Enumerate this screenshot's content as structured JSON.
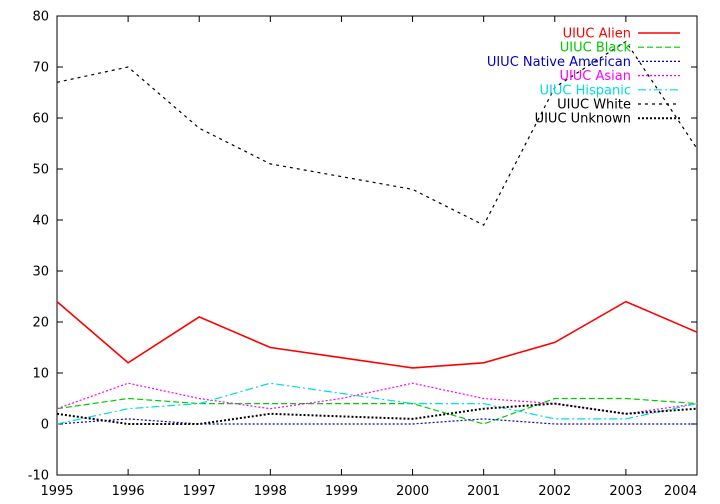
{
  "chart_data": {
    "type": "line",
    "title": "",
    "xlabel": "",
    "ylabel": "",
    "x": [
      1995,
      1996,
      1997,
      1998,
      1999,
      2000,
      2001,
      2002,
      2003,
      2004
    ],
    "xlim": [
      1995,
      2004
    ],
    "ylim": [
      -10,
      80
    ],
    "x_ticks": [
      "1995",
      "1996",
      "1997",
      "1998",
      "1999",
      "2000",
      "2001",
      "2002",
      "2003",
      "2004"
    ],
    "y_ticks": [
      "-10",
      "0",
      "10",
      "20",
      "30",
      "40",
      "50",
      "60",
      "70",
      "80"
    ],
    "x_tick_values": [
      1995,
      1996,
      1997,
      1998,
      1999,
      2000,
      2001,
      2002,
      2003,
      2004
    ],
    "y_tick_values": [
      -10,
      0,
      10,
      20,
      30,
      40,
      50,
      60,
      70,
      80
    ],
    "grid": false,
    "legend_position": "top-right",
    "series": [
      {
        "name": "UIUC Alien",
        "color": "#ff0000",
        "dash": "solid",
        "values": [
          24,
          12,
          21,
          15,
          13,
          11,
          12,
          16,
          24,
          18
        ]
      },
      {
        "name": "UIUC Black",
        "color": "#00cc00",
        "dash": "long-dash",
        "values": [
          3,
          5,
          4,
          4,
          4,
          4,
          0,
          5,
          5,
          4
        ]
      },
      {
        "name": "UIUC Native American",
        "color": "#0000cc",
        "dash": "dotted",
        "values": [
          0,
          1,
          0,
          0,
          0,
          0,
          1,
          0,
          0,
          0
        ]
      },
      {
        "name": "UIUC Asian",
        "color": "#ff00ff",
        "dash": "dotted",
        "values": [
          3,
          8,
          5,
          3,
          5,
          8,
          5,
          4,
          2,
          4
        ]
      },
      {
        "name": "UIUC Hispanic",
        "color": "#00dddd",
        "dash": "dash-dot",
        "values": [
          0,
          3,
          4,
          8,
          6,
          4,
          4,
          1,
          1,
          4
        ]
      },
      {
        "name": "UIUC White",
        "color": "#000000",
        "dash": "short-dash",
        "values": [
          67,
          70,
          58,
          51,
          48.5,
          46,
          39,
          66,
          75,
          54
        ]
      },
      {
        "name": "UIUC Unknown",
        "color": "#000000",
        "dash": "dotted-bold",
        "values": [
          2,
          0,
          0,
          2,
          1.5,
          1,
          3,
          4,
          2,
          3
        ]
      }
    ]
  }
}
